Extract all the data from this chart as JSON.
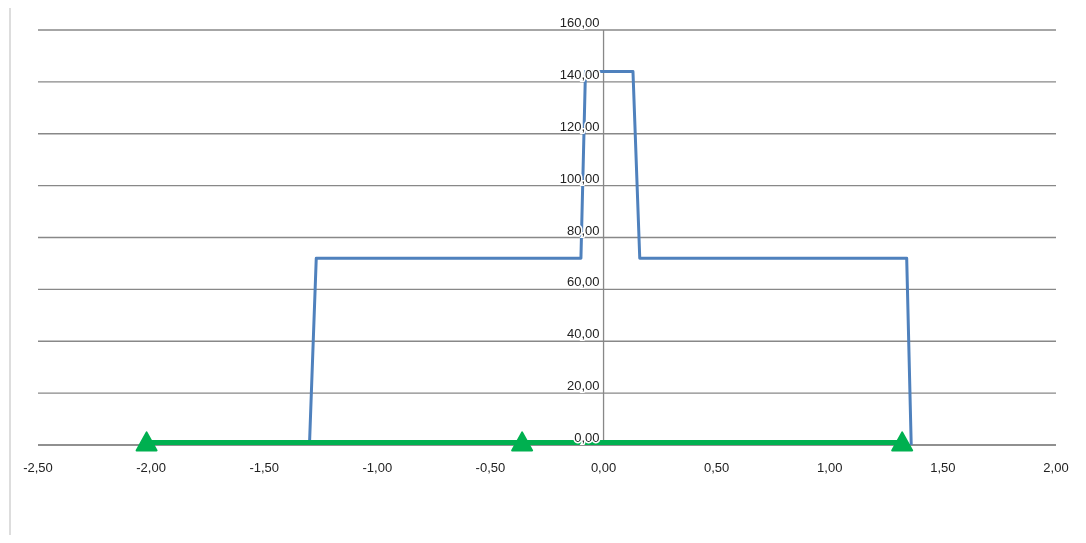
{
  "chart_data": {
    "type": "line",
    "xlim": [
      -2.5,
      2
    ],
    "xticks": [
      {
        "value": -2.5,
        "label": "-2,50"
      },
      {
        "value": -2,
        "label": "-2,00"
      },
      {
        "value": -1.5,
        "label": "-1,50"
      },
      {
        "value": -1,
        "label": "-1,00"
      },
      {
        "value": -0.5,
        "label": "-0,50"
      },
      {
        "value": 0,
        "label": "0,00"
      },
      {
        "value": 0.5,
        "label": "0,50"
      },
      {
        "value": 1,
        "label": "1,00"
      },
      {
        "value": 1.5,
        "label": "1,50"
      },
      {
        "value": 2,
        "label": "2,00"
      }
    ],
    "ylim": [
      0,
      160
    ],
    "yticks": [
      {
        "value": 0,
        "label": "0,00"
      },
      {
        "value": 20,
        "label": "20,00"
      },
      {
        "value": 40,
        "label": "40,00"
      },
      {
        "value": 60,
        "label": "60,00"
      },
      {
        "value": 80,
        "label": "80,00"
      },
      {
        "value": 100,
        "label": "100,00"
      },
      {
        "value": 120,
        "label": "120,00"
      },
      {
        "value": 140,
        "label": "140,00"
      },
      {
        "value": 160,
        "label": "160,00"
      }
    ],
    "grid": "y",
    "series": [
      {
        "color": "#4f81bd",
        "marker": "none",
        "x": [
          -1.3,
          -1.27,
          -0.1,
          -0.08,
          0.13,
          0.16,
          1.34,
          1.36
        ],
        "values": [
          0,
          72,
          72,
          144,
          144,
          72,
          72,
          0
        ]
      },
      {
        "color": "#00b050",
        "marker": "triangle",
        "x": [
          -2.02,
          -0.36,
          1.32
        ],
        "values": [
          1,
          1,
          1
        ]
      }
    ]
  }
}
